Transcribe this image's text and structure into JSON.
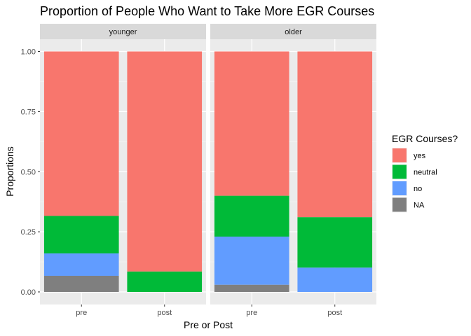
{
  "chart_data": {
    "type": "bar",
    "stacked": true,
    "title": "Proportion of People Who Want to Take More EGR Courses",
    "xlabel": "Pre or Post",
    "ylabel": "Proportions",
    "ylim": [
      0,
      1
    ],
    "yticks": [
      "0.00",
      "0.25",
      "0.50",
      "0.75",
      "1.00"
    ],
    "categories": [
      "pre",
      "post"
    ],
    "grid": true,
    "legend": {
      "title": "EGR Courses?",
      "position": "right",
      "entries": [
        {
          "label": "yes",
          "color": "#F8766D"
        },
        {
          "label": "neutral",
          "color": "#00BA38"
        },
        {
          "label": "no",
          "color": "#619CFF"
        },
        {
          "label": "NA",
          "color": "#7F7F7F"
        }
      ]
    },
    "facets": [
      {
        "name": "younger",
        "series": [
          {
            "name": "NA",
            "values": [
              0.067,
              0.0
            ]
          },
          {
            "name": "no",
            "values": [
              0.093,
              0.0
            ]
          },
          {
            "name": "neutral",
            "values": [
              0.156,
              0.085
            ]
          },
          {
            "name": "yes",
            "values": [
              0.684,
              0.915
            ]
          }
        ]
      },
      {
        "name": "older",
        "series": [
          {
            "name": "NA",
            "values": [
              0.03,
              0.0
            ]
          },
          {
            "name": "no",
            "values": [
              0.2,
              0.101
            ]
          },
          {
            "name": "neutral",
            "values": [
              0.17,
              0.21
            ]
          },
          {
            "name": "yes",
            "values": [
              0.6,
              0.689
            ]
          }
        ]
      }
    ]
  }
}
